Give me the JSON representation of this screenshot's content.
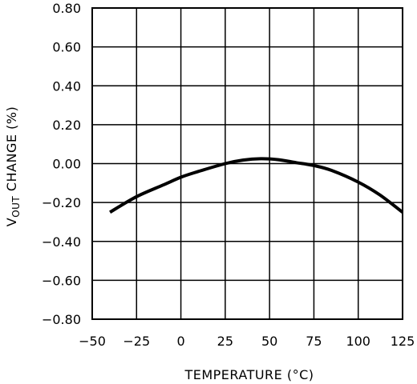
{
  "chart_data": {
    "type": "line",
    "title": "",
    "xlabel": "TEMPERATURE (°C)",
    "ylabel_main": "V",
    "ylabel_sub": "OUT",
    "ylabel_rest": " CHANGE (%)",
    "xlim": [
      -50,
      125
    ],
    "ylim": [
      -0.8,
      0.8
    ],
    "grid": true,
    "x_ticks": [
      "−50",
      "−25",
      "0",
      "25",
      "50",
      "75",
      "100",
      "125"
    ],
    "y_ticks": [
      "0.80",
      "0.60",
      "0.40",
      "0.20",
      "0.00",
      "−0.20",
      "−0.40",
      "−0.60",
      "−0.80"
    ],
    "series": [
      {
        "x": [
          -40,
          -25,
          -10,
          0,
          10,
          25,
          35,
          45,
          55,
          65,
          75,
          85,
          100,
          112,
          125
        ],
        "y": [
          -0.25,
          -0.17,
          -0.11,
          -0.07,
          -0.04,
          0.0,
          0.018,
          0.025,
          0.02,
          0.005,
          -0.01,
          -0.035,
          -0.095,
          -0.16,
          -0.25
        ]
      }
    ]
  }
}
